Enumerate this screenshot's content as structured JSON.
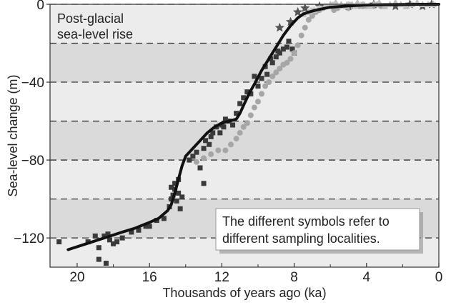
{
  "chart_data": {
    "type": "scatter",
    "title": "Post-glacial",
    "title_line2": "sea-level rise",
    "xlabel": "Thousands of years ago (ka)",
    "ylabel": "Sea-level change (m)",
    "xlim": [
      21.5,
      0
    ],
    "ylim": [
      -135,
      0
    ],
    "x_ticks": [
      20,
      16,
      12,
      8,
      4,
      0
    ],
    "y_ticks": [
      0,
      -40,
      -80,
      -120
    ],
    "dashed_gridlines": [
      0,
      -20,
      -40,
      -60,
      -80,
      -100,
      -120
    ],
    "annotation": {
      "line1": "The different symbols refer to",
      "line2": "different sampling localities."
    },
    "colors": {
      "band_light": "#ececec",
      "band_dark": "#dadada",
      "curve": "#111111",
      "squares": "#3a3a3a",
      "circles": "#a6a6a6",
      "stars": "#555555",
      "triangles": "#bdbdbd",
      "light_squares": "#c4c4c4"
    },
    "curve": {
      "x": [
        20.5,
        19.5,
        18.5,
        17.5,
        16.8,
        16.0,
        15.5,
        15.0,
        14.8,
        14.6,
        14.4,
        14.2,
        14.0,
        13.6,
        13.2,
        12.8,
        12.4,
        12.0,
        11.6,
        11.2,
        11.0,
        10.8,
        10.5,
        10.2,
        9.8,
        9.4,
        9.0,
        8.6,
        8.2,
        7.8,
        7.5,
        7.2,
        6.8,
        6.0,
        5.0,
        4.0,
        3.0,
        2.0,
        1.0,
        0.0
      ],
      "y": [
        -126,
        -123,
        -120,
        -117,
        -115,
        -112,
        -110,
        -106,
        -103,
        -97,
        -90,
        -83,
        -78,
        -74,
        -70,
        -66,
        -63,
        -61,
        -60,
        -59,
        -56,
        -52,
        -46,
        -41,
        -34,
        -28,
        -22,
        -16,
        -11,
        -7,
        -5,
        -4,
        -3,
        -1.5,
        -0.8,
        -0.4,
        -0.2,
        -0.1,
        0,
        0
      ]
    },
    "series": [
      {
        "marker": "square",
        "x": [
          21.0,
          19.4,
          19.0,
          18.8,
          18.5,
          18.3,
          18.2,
          18.0,
          17.8,
          17.5,
          17.0,
          16.6,
          16.2,
          16.0,
          15.6,
          15.2,
          14.9,
          14.8,
          14.7,
          14.6,
          14.5,
          14.4,
          14.3,
          14.6,
          14.8,
          14.2,
          14.4,
          13.8,
          13.6,
          13.4,
          13.2,
          13.0,
          12.9,
          12.7,
          12.6,
          12.5,
          12.3,
          12.1,
          12.0,
          11.9,
          11.8,
          11.6,
          11.4,
          11.2,
          11.0,
          10.8,
          10.6,
          10.4,
          10.2,
          10.0,
          9.8,
          9.6,
          9.5,
          9.3,
          9.2,
          9.0,
          8.9,
          8.8,
          8.6,
          8.4,
          8.3,
          8.1,
          8.0,
          13.0,
          18.8,
          18.4
        ],
        "y": [
          -122,
          -122,
          -119,
          -125,
          -119,
          -118,
          -121,
          -123,
          -122,
          -120,
          -117,
          -116,
          -114,
          -114,
          -111,
          -110,
          -104,
          -100,
          -98,
          -95,
          -101,
          -97,
          -105,
          -92,
          -94,
          -99,
          -90,
          -80,
          -78,
          -76,
          -84,
          -74,
          -70,
          -72,
          -68,
          -66,
          -63,
          -66,
          -62,
          -63,
          -59,
          -60,
          -62,
          -56,
          -51,
          -48,
          -45,
          -46,
          -37,
          -42,
          -38,
          -32,
          -36,
          -28,
          -30,
          -27,
          -24,
          -25,
          -23,
          -22,
          -19,
          -23,
          -25,
          -92,
          -131,
          -133
        ]
      },
      {
        "marker": "circle",
        "x": [
          13.4,
          13.0,
          12.6,
          12.2,
          11.8,
          11.5,
          11.2,
          11.0,
          10.8,
          10.6,
          10.4,
          10.2,
          10.0,
          9.8,
          9.6,
          9.4,
          9.2,
          9.0,
          8.8,
          8.6,
          8.4,
          8.2,
          8.0,
          7.8,
          7.6,
          7.4,
          7.2,
          7.0,
          6.8,
          6.6,
          6.4,
          6.2,
          6.0,
          5.8,
          5.6,
          5.4,
          5.2,
          5.0,
          4.8,
          4.6,
          4.4,
          4.2,
          4.0,
          3.8,
          3.6,
          3.4,
          3.2,
          3.0
        ],
        "y": [
          -81,
          -79,
          -77,
          -75,
          -75,
          -72,
          -69,
          -66,
          -63,
          -61,
          -57,
          -53,
          -50,
          -46,
          -42,
          -40,
          -37,
          -35,
          -33,
          -31,
          -30,
          -28,
          -25,
          -21,
          -16,
          -12,
          -8,
          -6,
          -4,
          -3,
          -2,
          -1,
          -1,
          -3,
          -2,
          -1,
          -1,
          -2,
          -1,
          -1,
          -1,
          -1,
          -1,
          -1,
          -1,
          0,
          -1,
          -1
        ]
      },
      {
        "marker": "star",
        "x": [
          8.8,
          8.2,
          7.8,
          7.4,
          6.6,
          5.0,
          3.6,
          2.4,
          1.6,
          0.9,
          0.4
        ],
        "y": [
          -12,
          -9,
          -4,
          -2,
          -1,
          -1,
          0,
          -1,
          0,
          -1,
          0
        ]
      },
      {
        "marker": "triangle",
        "x": [
          7.5,
          7.2,
          6.9,
          6.6,
          6.3,
          6.0,
          5.7,
          5.4,
          5.1,
          4.8,
          4.5,
          4.2,
          3.9,
          3.6,
          3.3,
          3.0,
          2.7,
          2.4,
          2.1,
          1.8,
          1.5,
          1.2,
          0.9,
          0.6,
          0.3
        ],
        "y": [
          -5,
          -4,
          -3,
          -2,
          -1,
          0,
          1,
          0,
          -1,
          0,
          1,
          0,
          -1,
          0,
          1,
          -1,
          0,
          1,
          0,
          -1,
          0,
          1,
          0,
          0,
          0
        ]
      },
      {
        "marker": "light-square",
        "x": [
          7.0,
          6.6,
          6.2,
          5.8,
          5.4,
          5.0,
          4.6,
          4.2,
          3.8,
          3.4
        ],
        "y": [
          -3,
          -2,
          -1,
          0,
          -1,
          0,
          -1,
          0,
          -1,
          0
        ]
      }
    ]
  }
}
